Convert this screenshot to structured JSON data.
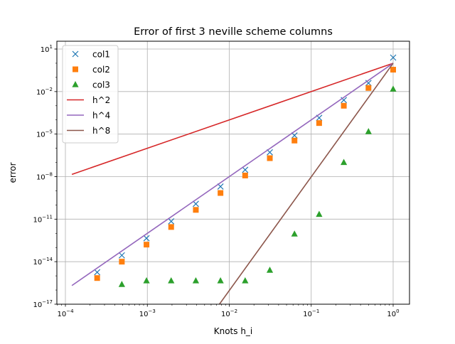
{
  "chart_data": {
    "type": "scatter",
    "title": "Error of first 3 neville scheme columns",
    "xlabel": "Knots h_i",
    "ylabel": "error",
    "xscale": "log",
    "yscale": "log",
    "xlim": [
      0.0001,
      1.0
    ],
    "ylim": [
      1e-17,
      10
    ],
    "grid": true,
    "legend_position": "top-left",
    "xticks": [
      {
        "value": 0.0001,
        "base": "10",
        "exp": "−4"
      },
      {
        "value": 0.001,
        "base": "10",
        "exp": "−3"
      },
      {
        "value": 0.01,
        "base": "10",
        "exp": "−2"
      },
      {
        "value": 0.1,
        "base": "10",
        "exp": "−1"
      },
      {
        "value": 1,
        "base": "10",
        "exp": "0"
      }
    ],
    "yticks": [
      {
        "value": 1e-17,
        "base": "10",
        "exp": "−17"
      },
      {
        "value": 1e-14,
        "base": "10",
        "exp": "−14"
      },
      {
        "value": 1e-11,
        "base": "10",
        "exp": "−11"
      },
      {
        "value": 1e-08,
        "base": "10",
        "exp": "−8"
      },
      {
        "value": 1e-05,
        "base": "10",
        "exp": "−5"
      },
      {
        "value": 0.01,
        "base": "10",
        "exp": "−2"
      },
      {
        "value": 10,
        "base": "10",
        "exp": "1"
      }
    ],
    "series": [
      {
        "name": "col1",
        "kind": "markers",
        "marker": "x",
        "color": "#1f77b4",
        "x": [
          1,
          0.5,
          0.25,
          0.125,
          0.0625,
          0.03125,
          0.015625,
          0.0078125,
          0.00390625,
          0.001953125,
          0.0009765625,
          0.00048828125,
          0.000244140625
        ],
        "y": [
          2.5,
          0.04,
          0.0025,
          0.00014,
          8e-06,
          5.2e-07,
          3e-08,
          2e-09,
          1.2e-10,
          7e-12,
          4.5e-13,
          2.8e-14,
          1.8e-15
        ]
      },
      {
        "name": "col2",
        "kind": "markers",
        "marker": "square",
        "color": "#ff7f0e",
        "x": [
          1,
          0.5,
          0.25,
          0.125,
          0.0625,
          0.03125,
          0.015625,
          0.0078125,
          0.00390625,
          0.001953125,
          0.0009765625,
          0.00048828125,
          0.000244140625
        ],
        "y": [
          0.35,
          0.018,
          0.001,
          6e-05,
          3.5e-06,
          2e-07,
          1.2e-08,
          7e-10,
          4.5e-11,
          2.8e-12,
          1.6e-13,
          1e-14,
          7e-16
        ]
      },
      {
        "name": "col3",
        "kind": "markers",
        "marker": "triangle",
        "color": "#2ca02c",
        "x": [
          1,
          0.5,
          0.25,
          0.125,
          0.0625,
          0.03125,
          0.015625,
          0.0078125,
          0.00390625,
          0.001953125,
          0.0009765625,
          0.00048828125
        ],
        "y": [
          0.015,
          1.5e-05,
          1e-07,
          2.2e-11,
          9e-13,
          2.5e-15,
          4.5e-16,
          4.5e-16,
          4.5e-16,
          4.5e-16,
          4.5e-16,
          2.5e-16
        ]
      },
      {
        "name": "h^2",
        "kind": "line",
        "color": "#d62728",
        "x": [
          0.00012,
          1
        ],
        "y": [
          1.44e-08,
          1
        ]
      },
      {
        "name": "h^4",
        "kind": "line",
        "color": "#9467bd",
        "x": [
          0.00012,
          1
        ],
        "y": [
          2.07e-16,
          1
        ]
      },
      {
        "name": "h^8",
        "kind": "line",
        "color": "#8c564b",
        "x": [
          0.00758,
          1
        ],
        "y": [
          1e-17,
          1
        ]
      }
    ]
  }
}
